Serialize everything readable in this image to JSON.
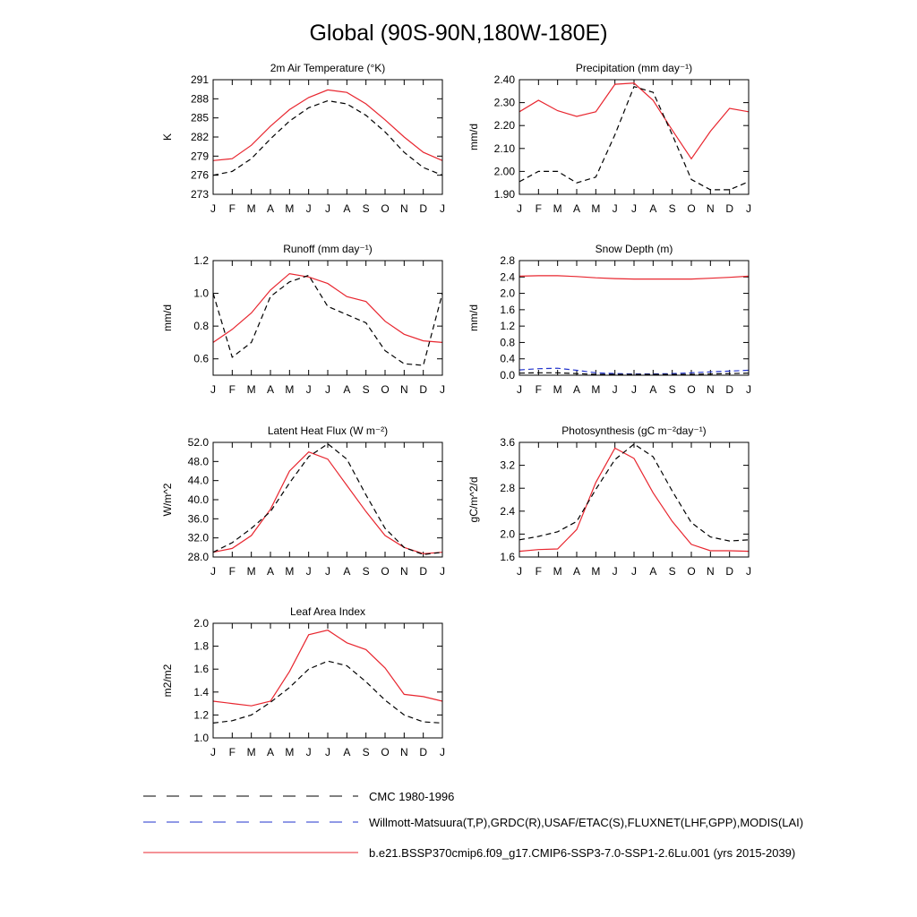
{
  "title": "Global (90S-90N,180W-180E)",
  "months": [
    "J",
    "F",
    "M",
    "A",
    "M",
    "J",
    "J",
    "A",
    "S",
    "O",
    "N",
    "D",
    "J"
  ],
  "colors": {
    "model": "#e8262f",
    "obs": "#000000",
    "obs_alt": "#2233cc"
  },
  "legend": {
    "items": [
      {
        "label": "CMC 1980-1996",
        "style": "dash",
        "color": "#000000"
      },
      {
        "label": "Willmott-Matsuura(T,P),GRDC(R),USAF/ETAC(S),FLUXNET(LHF,GPP),MODIS(LAI)",
        "style": "dash",
        "color": "#2233cc"
      },
      {
        "label": "b.e21.BSSP370cmip6.f09_g17.CMIP6-SSP3-7.0-SSP1-2.6Lu.001 (yrs 2015-2039)",
        "style": "solid",
        "color": "#e8262f"
      }
    ]
  },
  "chart_data": [
    {
      "type": "line",
      "title": "2m Air Temperature (°K)",
      "ylabel": "K",
      "ylim": [
        273,
        291
      ],
      "yticks": [
        "273",
        "276",
        "279",
        "282",
        "285",
        "288",
        "291"
      ],
      "series": [
        {
          "role": "model",
          "values": [
            278.3,
            278.6,
            280.7,
            283.7,
            286.3,
            288.2,
            289.4,
            289.0,
            287.2,
            284.7,
            282.0,
            279.6,
            278.3
          ]
        },
        {
          "role": "obs",
          "values": [
            276.0,
            276.6,
            278.6,
            281.7,
            284.5,
            286.6,
            287.7,
            287.2,
            285.4,
            282.8,
            279.6,
            277.2,
            276.0
          ]
        }
      ]
    },
    {
      "type": "line",
      "title": "Precipitation (mm day⁻¹)",
      "ylabel": "mm/d",
      "ylim": [
        1.9,
        2.4
      ],
      "yticks": [
        "1.90",
        "2.00",
        "2.10",
        "2.20",
        "2.30",
        "2.40"
      ],
      "series": [
        {
          "role": "model",
          "values": [
            2.26,
            2.31,
            2.265,
            2.24,
            2.26,
            2.38,
            2.385,
            2.31,
            2.18,
            2.055,
            2.175,
            2.275,
            2.26
          ]
        },
        {
          "role": "obs",
          "values": [
            1.955,
            2.0,
            2.0,
            1.95,
            1.975,
            2.16,
            2.37,
            2.345,
            2.16,
            1.965,
            1.92,
            1.92,
            1.955
          ]
        }
      ]
    },
    {
      "type": "line",
      "title": "Runoff (mm day⁻¹)",
      "ylabel": "mm/d",
      "ylim": [
        0.5,
        1.2
      ],
      "yticks": [
        "0.6",
        "0.8",
        "1.0",
        "1.2"
      ],
      "series": [
        {
          "role": "model",
          "values": [
            0.7,
            0.78,
            0.88,
            1.02,
            1.12,
            1.1,
            1.06,
            0.98,
            0.95,
            0.83,
            0.75,
            0.71,
            0.7
          ]
        },
        {
          "role": "obs",
          "values": [
            1.0,
            0.61,
            0.7,
            0.98,
            1.07,
            1.11,
            0.92,
            0.87,
            0.82,
            0.65,
            0.57,
            0.56,
            1.0
          ]
        }
      ]
    },
    {
      "type": "line",
      "title": "Snow Depth (m)",
      "ylabel": "mm/d",
      "ylim": [
        0.0,
        2.8
      ],
      "yticks": [
        "0.0",
        "0.4",
        "0.8",
        "1.2",
        "1.6",
        "2.0",
        "2.4",
        "2.8"
      ],
      "series": [
        {
          "role": "model",
          "values": [
            2.42,
            2.43,
            2.43,
            2.41,
            2.38,
            2.36,
            2.35,
            2.35,
            2.35,
            2.35,
            2.37,
            2.39,
            2.42
          ]
        },
        {
          "role": "obs_alt",
          "values": [
            0.13,
            0.16,
            0.17,
            0.12,
            0.06,
            0.04,
            0.03,
            0.03,
            0.04,
            0.06,
            0.08,
            0.1,
            0.12
          ]
        },
        {
          "role": "obs",
          "values": [
            0.05,
            0.06,
            0.06,
            0.04,
            0.02,
            0.02,
            0.02,
            0.02,
            0.02,
            0.02,
            0.03,
            0.04,
            0.05
          ]
        }
      ]
    },
    {
      "type": "line",
      "title": "Latent Heat Flux (W m⁻²)",
      "ylabel": "W/m^2",
      "ylim": [
        28.0,
        52.0
      ],
      "yticks": [
        "28.0",
        "32.0",
        "36.0",
        "40.0",
        "44.0",
        "48.0",
        "52.0"
      ],
      "series": [
        {
          "role": "model",
          "values": [
            29.0,
            29.8,
            32.5,
            38.0,
            46.0,
            50.0,
            48.5,
            43.0,
            37.5,
            32.5,
            30.0,
            28.7,
            29.0
          ]
        },
        {
          "role": "obs",
          "values": [
            29.0,
            31.0,
            34.0,
            37.5,
            43.5,
            49.0,
            51.7,
            48.5,
            41.0,
            34.0,
            30.0,
            28.5,
            29.0
          ]
        }
      ]
    },
    {
      "type": "line",
      "title": "Photosynthesis (gC m⁻²day⁻¹)",
      "ylabel": "gC/m^2/d",
      "ylim": [
        1.6,
        3.6
      ],
      "yticks": [
        "1.6",
        "2.0",
        "2.4",
        "2.8",
        "3.2",
        "3.6"
      ],
      "series": [
        {
          "role": "model",
          "values": [
            1.7,
            1.73,
            1.74,
            2.08,
            2.9,
            3.5,
            3.32,
            2.72,
            2.22,
            1.82,
            1.71,
            1.71,
            1.7
          ]
        },
        {
          "role": "obs",
          "values": [
            1.9,
            1.96,
            2.04,
            2.22,
            2.78,
            3.3,
            3.57,
            3.35,
            2.75,
            2.2,
            1.95,
            1.88,
            1.9
          ]
        }
      ]
    },
    {
      "type": "line",
      "title": "Leaf Area Index",
      "ylabel": "m2/m2",
      "ylim": [
        1.0,
        2.0
      ],
      "yticks": [
        "1.0",
        "1.2",
        "1.4",
        "1.6",
        "1.8",
        "2.0"
      ],
      "series": [
        {
          "role": "model",
          "values": [
            1.32,
            1.3,
            1.28,
            1.32,
            1.58,
            1.9,
            1.94,
            1.83,
            1.77,
            1.61,
            1.38,
            1.36,
            1.32
          ]
        },
        {
          "role": "obs",
          "values": [
            1.13,
            1.15,
            1.2,
            1.31,
            1.44,
            1.6,
            1.67,
            1.63,
            1.49,
            1.33,
            1.2,
            1.14,
            1.13
          ]
        }
      ]
    }
  ]
}
